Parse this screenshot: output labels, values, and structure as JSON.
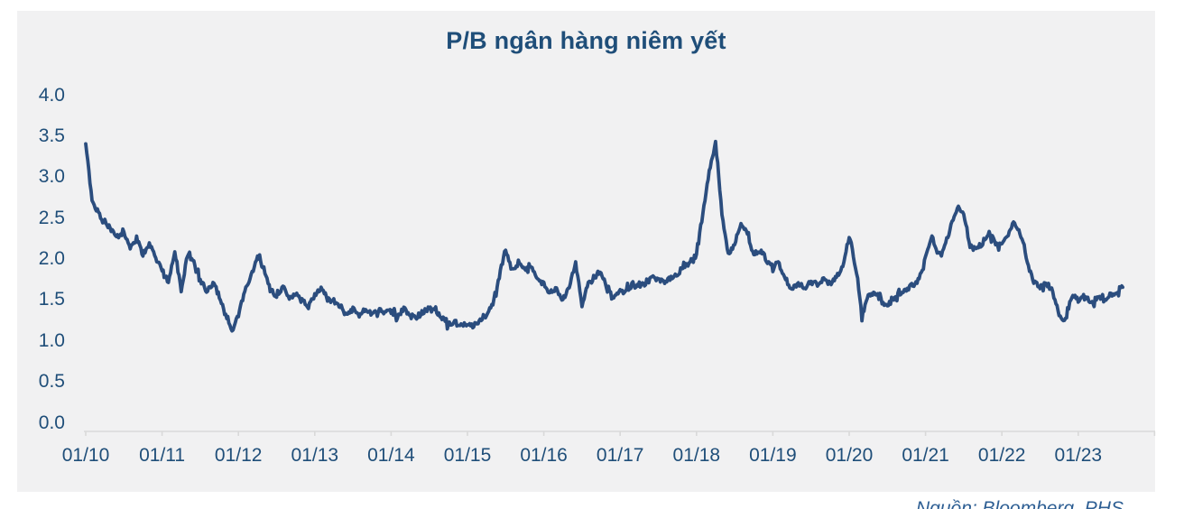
{
  "title": "P/B ngân hàng niêm yết",
  "source_caption": "Nguồn: Bloomberg, PHS",
  "chart_data": {
    "type": "line",
    "title": "P/B ngân hàng niêm yết",
    "xlabel": "",
    "ylabel": "",
    "ylim": [
      0.0,
      4.0
    ],
    "y_tick_step": 0.5,
    "grid": "off",
    "legend": "none",
    "x_tick_labels": [
      "01/10",
      "01/11",
      "01/12",
      "01/13",
      "01/14",
      "01/15",
      "01/16",
      "01/17",
      "01/18",
      "01/19",
      "01/20",
      "01/21",
      "01/22",
      "01/23"
    ],
    "y_tick_labels": [
      "0.0",
      "0.5",
      "1.0",
      "1.5",
      "2.0",
      "2.5",
      "3.0",
      "3.5",
      "4.0"
    ],
    "colors": {
      "line": "#2b4d7e",
      "labels": "#1f4e79",
      "panel_bg": "#f1f1f2",
      "axis": "#d9d9d9",
      "caption": "#2e5f94"
    },
    "series": [
      {
        "name": "P/B ngân hàng niêm yết",
        "start": "2010-01",
        "frequency": "monthly",
        "monthly_values": [
          3.4,
          2.72,
          2.55,
          2.45,
          2.35,
          2.28,
          2.3,
          2.12,
          2.25,
          2.05,
          2.18,
          2.0,
          1.88,
          1.7,
          2.1,
          1.62,
          2.05,
          1.95,
          1.72,
          1.62,
          1.7,
          1.55,
          1.3,
          1.1,
          1.35,
          1.6,
          1.78,
          2.02,
          1.88,
          1.62,
          1.55,
          1.65,
          1.52,
          1.58,
          1.48,
          1.42,
          1.55,
          1.65,
          1.5,
          1.45,
          1.4,
          1.32,
          1.38,
          1.3,
          1.35,
          1.32,
          1.38,
          1.33,
          1.35,
          1.3,
          1.38,
          1.3,
          1.27,
          1.35,
          1.4,
          1.35,
          1.28,
          1.2,
          1.22,
          1.18,
          1.22,
          1.18,
          1.25,
          1.32,
          1.45,
          1.78,
          2.12,
          1.85,
          1.95,
          1.88,
          1.92,
          1.75,
          1.68,
          1.58,
          1.62,
          1.5,
          1.65,
          1.95,
          1.42,
          1.7,
          1.78,
          1.85,
          1.62,
          1.52,
          1.58,
          1.62,
          1.68,
          1.65,
          1.72,
          1.78,
          1.75,
          1.7,
          1.78,
          1.82,
          1.9,
          1.95,
          2.05,
          2.55,
          3.05,
          3.42,
          2.55,
          2.05,
          2.18,
          2.45,
          2.28,
          2.05,
          2.12,
          1.98,
          1.9,
          1.95,
          1.75,
          1.62,
          1.7,
          1.65,
          1.72,
          1.68,
          1.75,
          1.7,
          1.78,
          1.88,
          2.28,
          1.9,
          1.3,
          1.55,
          1.6,
          1.48,
          1.42,
          1.52,
          1.58,
          1.62,
          1.68,
          1.75,
          2.0,
          2.28,
          2.05,
          2.15,
          2.4,
          2.62,
          2.55,
          2.15,
          2.1,
          2.2,
          2.32,
          2.18,
          2.15,
          2.3,
          2.45,
          2.28,
          1.95,
          1.72,
          1.65,
          1.7,
          1.6,
          1.3,
          1.25,
          1.55,
          1.5,
          1.55,
          1.45,
          1.52,
          1.5,
          1.55,
          1.6,
          1.65
        ],
        "jitter_amplitude": 0.032,
        "samples_per_month": 6
      }
    ]
  }
}
